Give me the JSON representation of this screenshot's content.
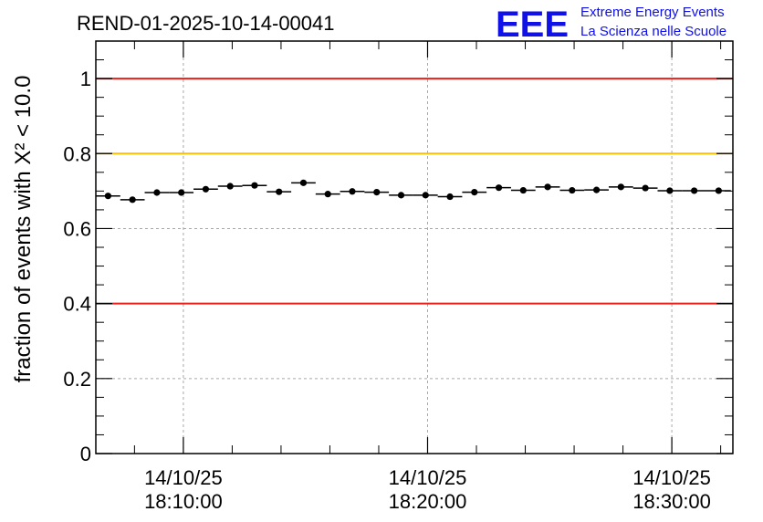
{
  "chart_data": {
    "type": "scatter",
    "title": "REND-01-2025-10-14-00041",
    "ylabel": "fraction of events with X² < 10.0",
    "ylim": [
      0,
      1.1
    ],
    "yticks": [
      0,
      0.2,
      0.4,
      0.6,
      0.8,
      1
    ],
    "ytick_labels": [
      "0",
      "0.2",
      "0.4",
      "0.6",
      "0.8",
      "1"
    ],
    "xticks": [
      {
        "time": "18:10:00",
        "date": "14/10/25"
      },
      {
        "time": "18:20:00",
        "date": "14/10/25"
      },
      {
        "time": "18:30:00",
        "date": "14/10/25"
      }
    ],
    "xlim": [
      "18:06:25",
      "18:32:30"
    ],
    "bin_width_seconds": 60,
    "grid": true,
    "series": [
      {
        "x": [
          "18:06:55",
          "18:07:55",
          "18:08:55",
          "18:09:55",
          "18:10:55",
          "18:11:55",
          "18:12:55",
          "18:13:55",
          "18:14:55",
          "18:15:55",
          "18:16:55",
          "18:17:55",
          "18:18:55",
          "18:19:55",
          "18:20:55",
          "18:21:55",
          "18:22:55",
          "18:23:55",
          "18:24:55",
          "18:25:55",
          "18:26:55",
          "18:27:55",
          "18:28:55",
          "18:29:55",
          "18:30:55",
          "18:31:55"
        ],
        "y": [
          0.687,
          0.677,
          0.696,
          0.696,
          0.705,
          0.713,
          0.715,
          0.698,
          0.722,
          0.692,
          0.699,
          0.697,
          0.689,
          0.689,
          0.685,
          0.697,
          0.709,
          0.702,
          0.711,
          0.702,
          0.703,
          0.711,
          0.708,
          0.701,
          0.701,
          0.701
        ],
        "color": "#000000"
      }
    ],
    "reference_lines": [
      {
        "y": 1.0,
        "color": "#e8201a"
      },
      {
        "y": 0.8,
        "color": "#ffbf00"
      },
      {
        "y": 0.4,
        "color": "#e8201a"
      }
    ]
  },
  "brand": {
    "logo": "EEE",
    "line1": "Extreme Energy Events",
    "line2": "La Scienza nelle Scuole",
    "color": "#1010e8"
  }
}
